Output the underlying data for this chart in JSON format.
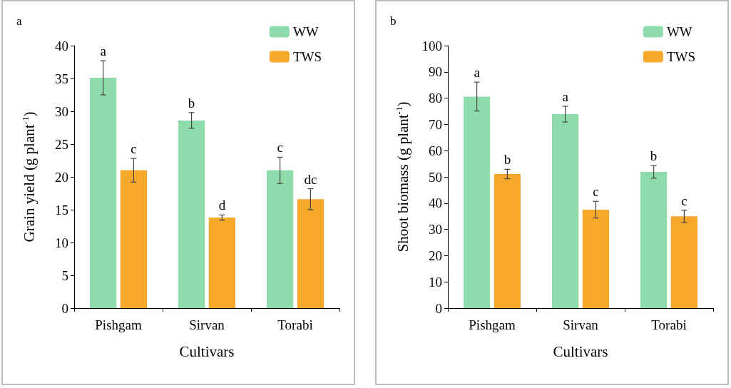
{
  "chart_data": [
    {
      "type": "bar",
      "title": "a",
      "xlabel": "Cultivars",
      "ylabel": "Grain yield (g plant$^{-1}$)",
      "categories": [
        "Pishgam",
        "Sirvan",
        "Torabi"
      ],
      "ylim": [
        0,
        40
      ],
      "yticks": [
        0,
        5,
        10,
        15,
        20,
        25,
        30,
        35,
        40
      ],
      "grid": false,
      "legend": "top right",
      "series": [
        {
          "name": "WW",
          "color": "#8edcab",
          "values": [
            35.1,
            28.6,
            21.0
          ],
          "errors": [
            2.6,
            1.2,
            2.0
          ],
          "value_labels": [
            "a",
            "b",
            "c"
          ]
        },
        {
          "name": "TWS",
          "color": "#f5a82a",
          "values": [
            21.0,
            13.8,
            16.6
          ],
          "errors": [
            1.8,
            0.4,
            1.6
          ],
          "value_labels": [
            "c",
            "d",
            "dc"
          ]
        }
      ]
    },
    {
      "type": "bar",
      "title": "b",
      "xlabel": "Cultivars",
      "ylabel": "Shoot biomass (g plant$^{-1}$)",
      "categories": [
        "Pishgam",
        "Sirvan",
        "Torabi"
      ],
      "ylim": [
        0,
        100
      ],
      "yticks": [
        0,
        10,
        20,
        30,
        40,
        50,
        60,
        70,
        80,
        90,
        100
      ],
      "grid": false,
      "legend": "top right",
      "series": [
        {
          "name": "WW",
          "color": "#8edcab",
          "values": [
            80.6,
            73.9,
            51.9
          ],
          "errors": [
            5.5,
            3.0,
            2.4
          ],
          "value_labels": [
            "a",
            "a",
            "b"
          ]
        },
        {
          "name": "TWS",
          "color": "#f5a82a",
          "values": [
            51.1,
            37.5,
            35.0
          ],
          "errors": [
            1.8,
            3.2,
            2.3
          ],
          "value_labels": [
            "b",
            "c",
            "c"
          ]
        }
      ]
    }
  ]
}
